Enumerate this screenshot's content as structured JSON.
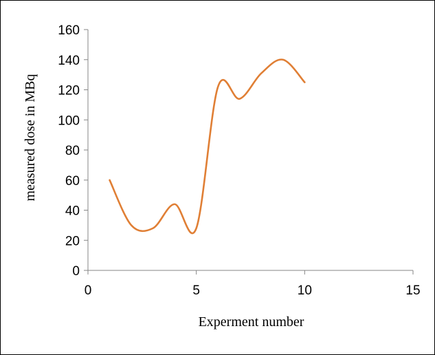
{
  "chart_data": {
    "type": "line",
    "xlabel": "Experment number",
    "ylabel": "measured dose in MBq",
    "xlim": [
      0,
      15
    ],
    "ylim": [
      0,
      160
    ],
    "xticks": [
      0,
      5,
      10,
      15
    ],
    "yticks": [
      0,
      20,
      40,
      60,
      80,
      100,
      120,
      140,
      160
    ],
    "grid": false,
    "legend": "none",
    "smooth": true,
    "series": [
      {
        "x": [
          1,
          2,
          3,
          4,
          5,
          6,
          7,
          8,
          9,
          10
        ],
        "y": [
          60,
          30,
          28,
          44,
          28,
          122,
          114,
          131,
          140,
          125
        ],
        "color": "#E07F35"
      }
    ]
  }
}
